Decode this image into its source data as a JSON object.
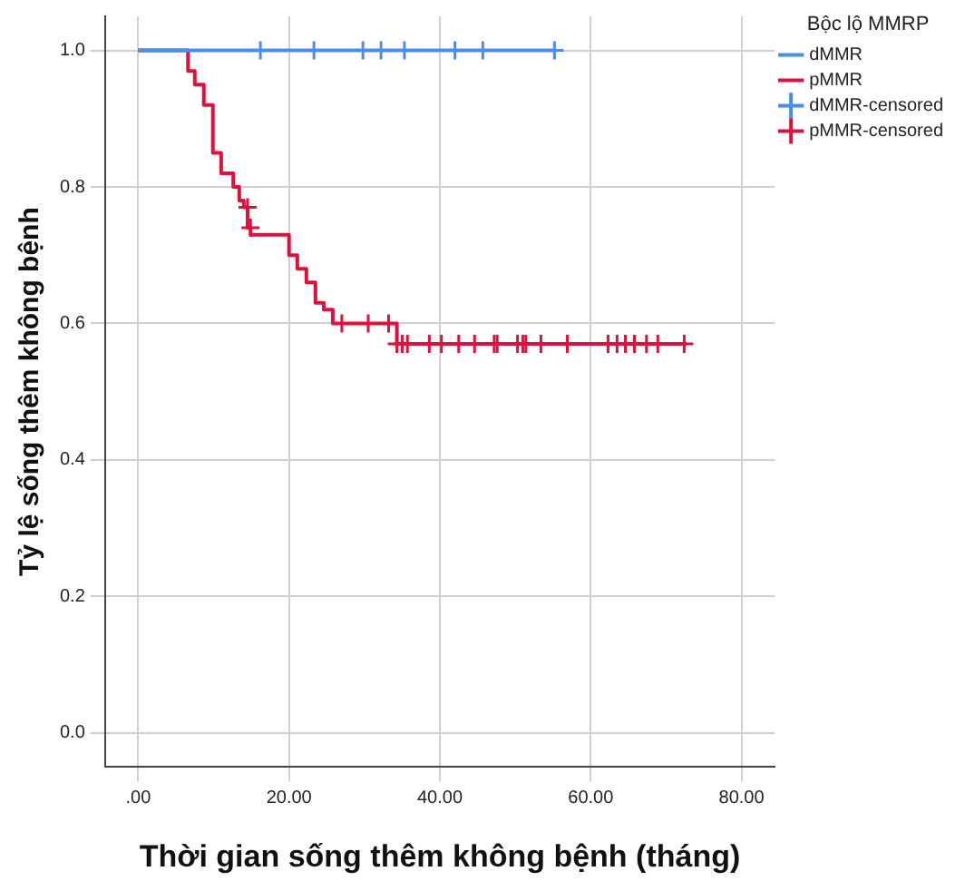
{
  "chart_data": {
    "type": "step",
    "xlabel": "Thời gian sống thêm không bệnh (tháng)",
    "ylabel": "Tỷ lệ sống thêm không bệnh",
    "legend_title": "Bộc lộ MMRP",
    "legend": "right",
    "grid": true,
    "xlim": [
      -4.4,
      84.4
    ],
    "ylim": [
      -0.05,
      1.05
    ],
    "xticks": [
      {
        "value": 0,
        "label": ".00"
      },
      {
        "value": 20,
        "label": "20.00"
      },
      {
        "value": 40,
        "label": "40.00"
      },
      {
        "value": 60,
        "label": "60.00"
      },
      {
        "value": 80,
        "label": "80.00"
      }
    ],
    "yticks": [
      {
        "value": 0,
        "label": "0.0"
      },
      0.2,
      0.4,
      0.6,
      0.8,
      {
        "value": 1,
        "label": "1.0"
      }
    ],
    "series": [
      {
        "name": "dMMR",
        "type": "step",
        "marker": "none",
        "color": "#4a8ee6",
        "x": [
          0,
          55.2
        ],
        "values": [
          1,
          1
        ]
      },
      {
        "name": "pMMR",
        "type": "step",
        "marker": "none",
        "color": "#e0103c",
        "x": [
          0,
          6.6,
          7.5,
          8.7,
          9.9,
          11.0,
          12.6,
          13.4,
          14.0,
          14.5,
          14.9,
          20.0,
          21.1,
          22.3,
          23.5,
          24.6,
          25.8,
          34.3,
          72.7
        ],
        "values": [
          1,
          0.97,
          0.95,
          0.92,
          0.85,
          0.82,
          0.8,
          0.78,
          0.77,
          0.74,
          0.73,
          0.7,
          0.68,
          0.66,
          0.63,
          0.62,
          0.6,
          0.57,
          0.57
        ]
      },
      {
        "name": "dMMR-censored",
        "type": "scatter",
        "marker": "cross",
        "color": "#4a8ee6",
        "x": [
          16.2,
          23.3,
          29.8,
          32.2,
          35.3,
          42.0,
          45.7,
          55.2
        ],
        "values": [
          1,
          1,
          1,
          1,
          1,
          1,
          1,
          1
        ]
      },
      {
        "name": "pMMR-censored",
        "type": "scatter",
        "marker": "cross",
        "color": "#e0103c",
        "x": [
          14.5,
          14.9,
          27.0,
          30.5,
          33.2,
          34.3,
          35.0,
          35.7,
          38.6,
          40.2,
          42.5,
          44.6,
          47.2,
          47.6,
          50.3,
          51.0,
          51.4,
          53.4,
          56.9,
          62.3,
          63.5,
          64.6,
          65.8,
          67.4,
          68.9,
          72.4
        ],
        "values": [
          0.77,
          0.74,
          0.6,
          0.6,
          0.6,
          0.57,
          0.57,
          0.57,
          0.57,
          0.57,
          0.57,
          0.57,
          0.57,
          0.57,
          0.57,
          0.57,
          0.57,
          0.57,
          0.57,
          0.57,
          0.57,
          0.57,
          0.57,
          0.57,
          0.57,
          0.57
        ]
      }
    ]
  }
}
